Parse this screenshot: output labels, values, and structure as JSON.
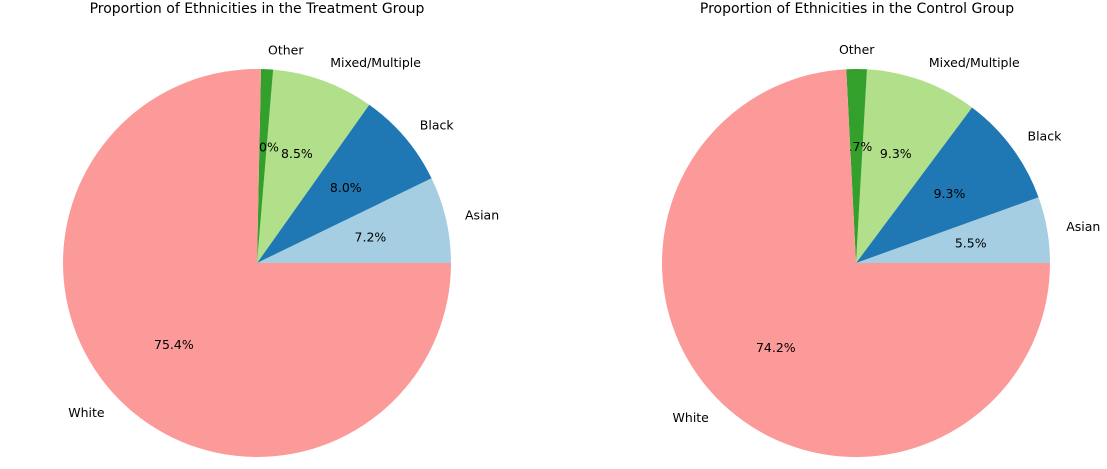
{
  "chart_data": [
    {
      "type": "pie",
      "title": "Proportion of Ethnicities in the Treatment Group",
      "start_angle_deg": 0,
      "direction": "counterclockwise",
      "slices": [
        {
          "label": "Asian",
          "value": 7.2,
          "display": "7.2%",
          "color": "#a6cee3"
        },
        {
          "label": "Black",
          "value": 8.0,
          "display": "8.0%",
          "color": "#1f78b4"
        },
        {
          "label": "Mixed/Multiple",
          "value": 8.5,
          "display": "8.5%",
          "color": "#b2df8a"
        },
        {
          "label": "Other",
          "value": 1.0,
          "display": "1.0%",
          "color": "#33a02c"
        },
        {
          "label": "White",
          "value": 75.4,
          "display": "75.4%",
          "color": "#fb9a99"
        }
      ]
    },
    {
      "type": "pie",
      "title": "Proportion of Ethnicities in the Control Group",
      "start_angle_deg": 0,
      "direction": "counterclockwise",
      "slices": [
        {
          "label": "Asian",
          "value": 5.5,
          "display": "5.5%",
          "color": "#a6cee3"
        },
        {
          "label": "Black",
          "value": 9.3,
          "display": "9.3%",
          "color": "#1f78b4"
        },
        {
          "label": "Mixed/Multiple",
          "value": 9.3,
          "display": "9.3%",
          "color": "#b2df8a"
        },
        {
          "label": "Other",
          "value": 1.7,
          "display": "1.7%",
          "color": "#33a02c"
        },
        {
          "label": "White",
          "value": 74.2,
          "display": "74.2%",
          "color": "#fb9a99"
        }
      ]
    }
  ]
}
